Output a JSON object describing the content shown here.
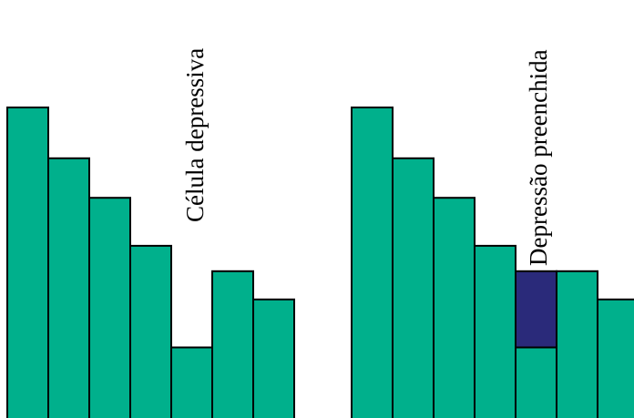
{
  "colors": {
    "cell_fill": "#00b08c",
    "filled_depression": "#2a2a7a",
    "outline": "#000000",
    "background": "#ffffff"
  },
  "left_panel": {
    "label": "Célula depressiva",
    "elevations": [
      11,
      9.2,
      7.8,
      6.1,
      2.5,
      5.2,
      4.2
    ],
    "filled_cell_index": null
  },
  "right_panel": {
    "label": "Depressão preenchida",
    "elevations": [
      11,
      9.2,
      7.8,
      6.1,
      2.5,
      5.2,
      4.2
    ],
    "filled_cell_index": 4,
    "filled_to": 5.2
  }
}
